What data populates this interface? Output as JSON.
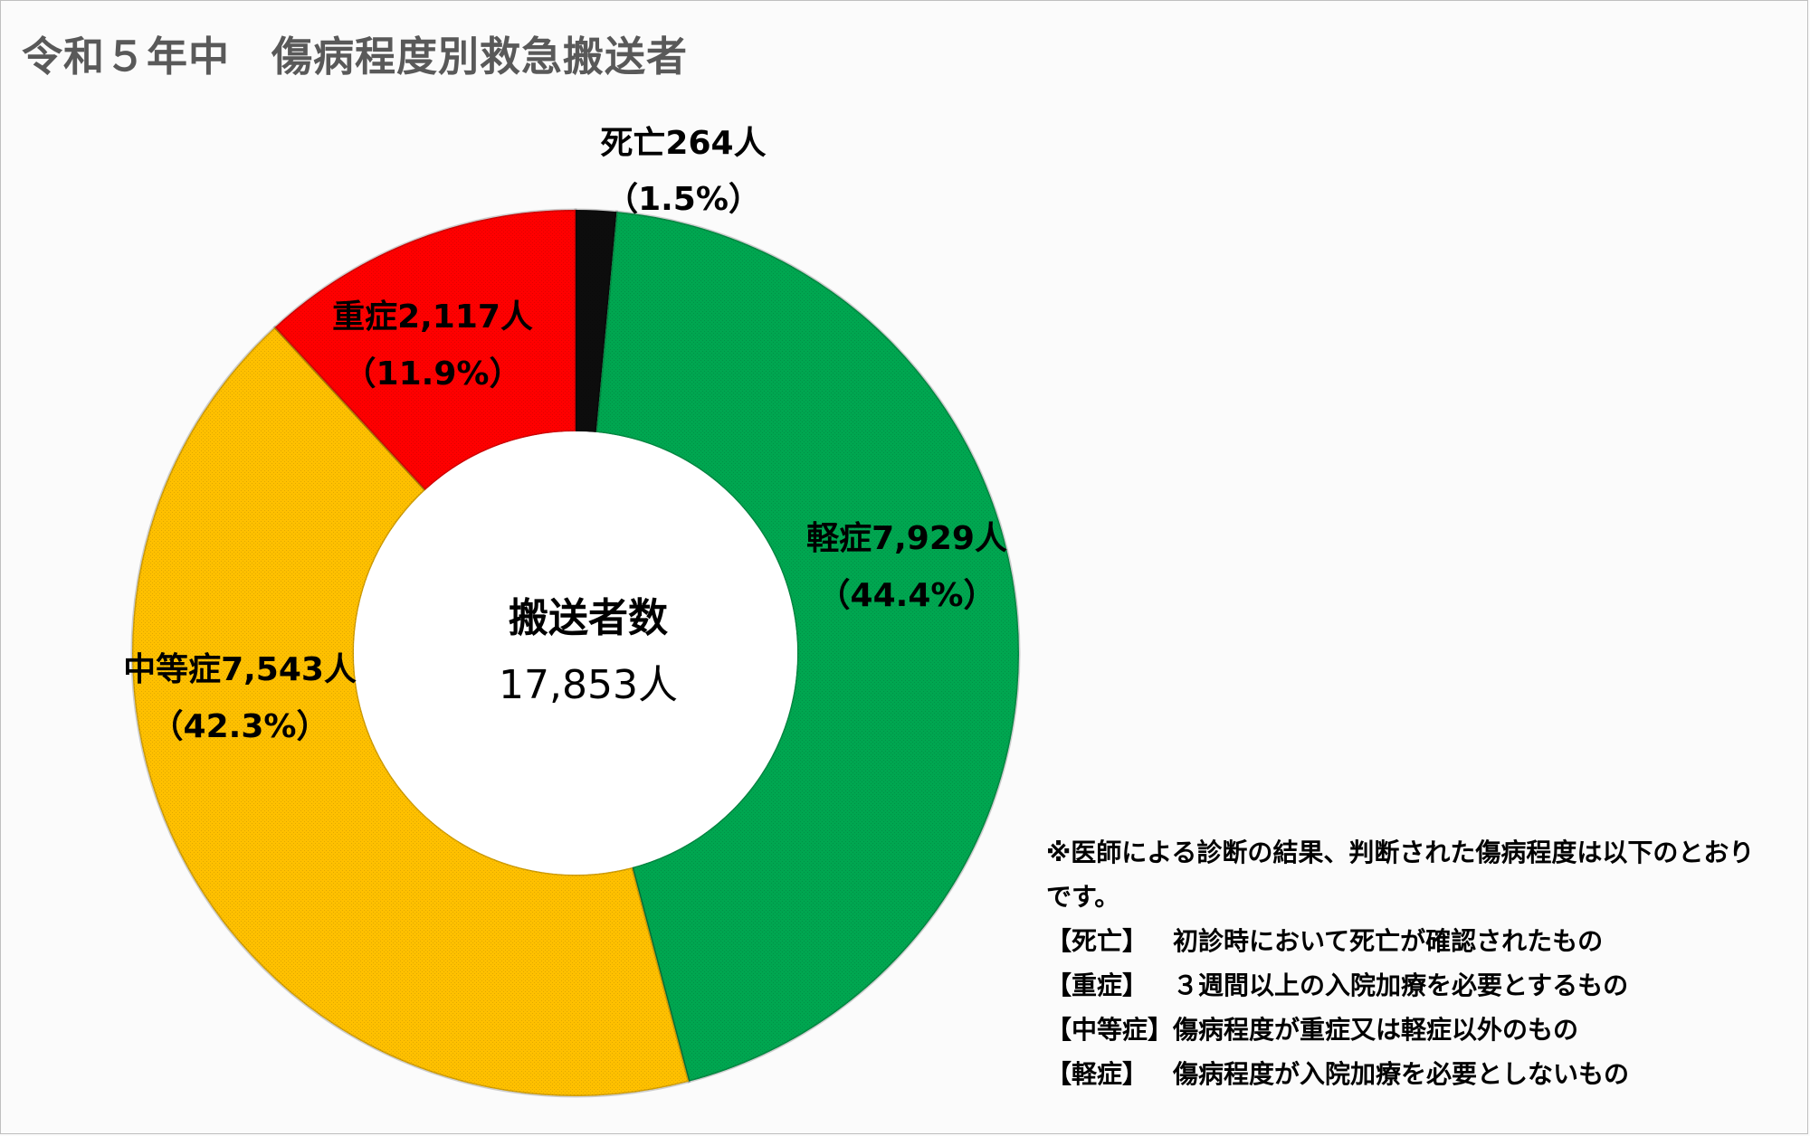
{
  "title": "令和５年中　傷病程度別救急搬送者",
  "chart_data": {
    "type": "pie",
    "title": "令和５年中　傷病程度別救急搬送者",
    "center_label": "搬送者数",
    "center_value": "17,853人",
    "total": 17853,
    "slices": [
      {
        "name": "死亡",
        "value": 264,
        "percent": 1.5,
        "label_line1": "死亡264人",
        "label_line2": "（1.5%）",
        "color": "#0d0d0d"
      },
      {
        "name": "軽症",
        "value": 7929,
        "percent": 44.4,
        "label_line1": "軽症7,929人",
        "label_line2": "（44.4%）",
        "color": "#00a650"
      },
      {
        "name": "中等症",
        "value": 7543,
        "percent": 42.3,
        "label_line1": "中等症7,543人",
        "label_line2": "（42.3%）",
        "color": "#ffc000"
      },
      {
        "name": "重症",
        "value": 2117,
        "percent": 11.9,
        "label_line1": "重症2,117人",
        "label_line2": "（11.9%）",
        "color": "#ff0000"
      }
    ]
  },
  "notes": {
    "intro": "※医師による診断の結果、判断された傷病程度は以下のとおりです。",
    "definitions": [
      {
        "term": "【死亡】",
        "desc": "初診時において死亡が確認されたもの"
      },
      {
        "term": "【重症】",
        "desc": "３週間以上の入院加療を必要とするもの"
      },
      {
        "term": "【中等症】",
        "desc": "傷病程度が重症又は軽症以外のもの"
      },
      {
        "term": "【軽症】",
        "desc": "傷病程度が入院加療を必要としないもの"
      }
    ]
  }
}
